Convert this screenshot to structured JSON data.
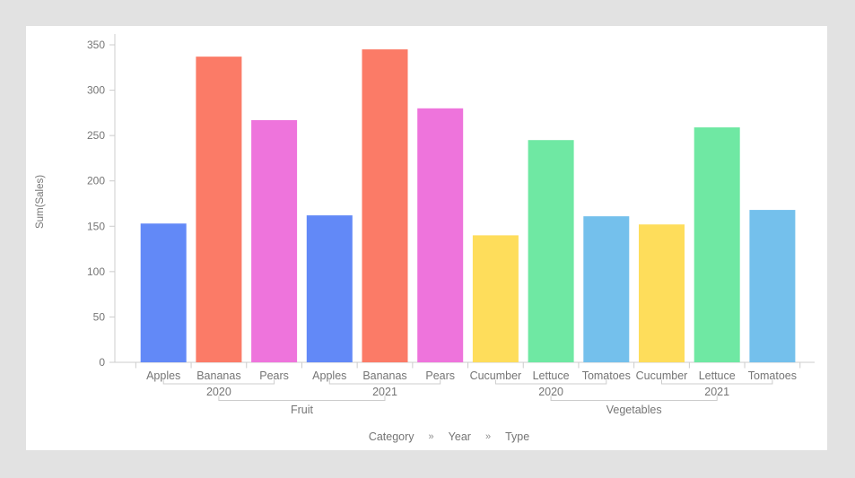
{
  "canvas": {
    "background": "#e2e2e2",
    "card_background": "#ffffff"
  },
  "breadcrumb": {
    "items": [
      "Category",
      "Year",
      "Type"
    ],
    "separator": "»"
  },
  "chart_data": {
    "type": "bar",
    "title": "",
    "ylabel": "Sum(Sales)",
    "xlabel": "",
    "x_hierarchy": [
      "Type",
      "Year",
      "Category"
    ],
    "ylim": [
      0,
      350
    ],
    "ytick_interval": 50,
    "grid": false,
    "legend": "none",
    "axis_color": "#cccccc",
    "text_color": "#757575",
    "groups": [
      {
        "category": "Fruit",
        "years": [
          {
            "year": "2020",
            "bars": [
              {
                "type": "Apples",
                "value": 153,
                "color": "#6289f7"
              },
              {
                "type": "Bananas",
                "value": 337,
                "color": "#fb7b67"
              },
              {
                "type": "Pears",
                "value": 267,
                "color": "#ee74dc"
              }
            ]
          },
          {
            "year": "2021",
            "bars": [
              {
                "type": "Apples",
                "value": 162,
                "color": "#6289f7"
              },
              {
                "type": "Bananas",
                "value": 345,
                "color": "#fb7b67"
              },
              {
                "type": "Pears",
                "value": 280,
                "color": "#ee74dc"
              }
            ]
          }
        ]
      },
      {
        "category": "Vegetables",
        "years": [
          {
            "year": "2020",
            "bars": [
              {
                "type": "Cucumber",
                "value": 140,
                "color": "#fedd5b"
              },
              {
                "type": "Lettuce",
                "value": 245,
                "color": "#6fe8a3"
              },
              {
                "type": "Tomatoes",
                "value": 161,
                "color": "#74c0ec"
              }
            ]
          },
          {
            "year": "2021",
            "bars": [
              {
                "type": "Cucumber",
                "value": 152,
                "color": "#fedd5b"
              },
              {
                "type": "Lettuce",
                "value": 259,
                "color": "#6fe8a3"
              },
              {
                "type": "Tomatoes",
                "value": 168,
                "color": "#74c0ec"
              }
            ]
          }
        ]
      }
    ]
  }
}
